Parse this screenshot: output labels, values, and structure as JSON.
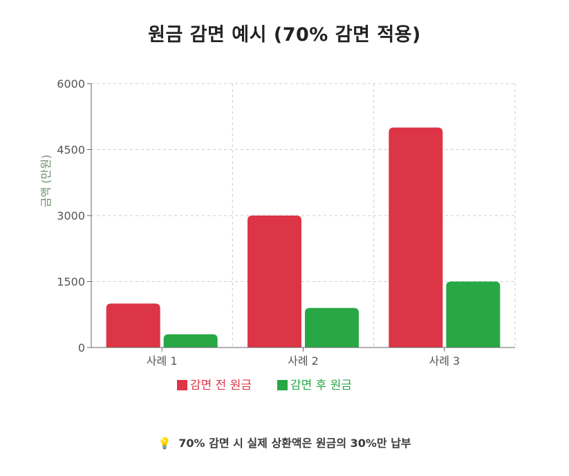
{
  "title": "원금 감면 예시 (70% 감면 적용)",
  "footnote": {
    "icon": "lightbulb-icon",
    "text": "70% 감면 시 실제 상환액은 원금의 30%만 납부"
  },
  "chart_data": {
    "type": "bar",
    "categories": [
      "사례 1",
      "사례 2",
      "사례 3"
    ],
    "series": [
      {
        "name": "감면 전 원금",
        "values": [
          1000,
          3000,
          5000
        ],
        "color": "#dc3545"
      },
      {
        "name": "감면 후 원금",
        "values": [
          300,
          900,
          1500
        ],
        "color": "#28a745"
      }
    ],
    "ylabel": "금액 (만원)",
    "ylabel_color": "#6b8e6b",
    "ylim": [
      0,
      6000
    ],
    "yticks": [
      0,
      1500,
      3000,
      4500,
      6000
    ],
    "grid": true,
    "legend": "bottom"
  }
}
